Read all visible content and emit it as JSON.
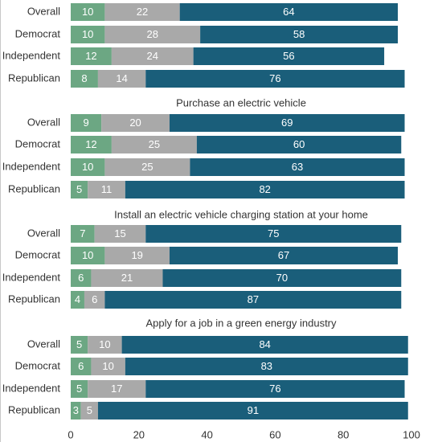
{
  "chart_data": {
    "type": "bar",
    "orientation": "horizontal",
    "stacked": true,
    "xlim": [
      0,
      100
    ],
    "x_ticks": [
      0,
      20,
      40,
      60,
      80,
      100
    ],
    "x_tick_labels": [
      "0",
      "20",
      "40",
      "60",
      "80",
      "100"
    ],
    "grid": false,
    "legend": "none",
    "colors": {
      "segment_1": "#6ca783",
      "segment_2": "#a9a9a9",
      "segment_3": "#1a5e7a",
      "text_dark": "#333333",
      "text_light": "#ffffff"
    },
    "groups": [
      {
        "title": "",
        "rows": [
          {
            "label": "Overall",
            "values": [
              10,
              22,
              64
            ]
          },
          {
            "label": "Democrat",
            "values": [
              10,
              28,
              58
            ]
          },
          {
            "label": "Independent",
            "values": [
              12,
              24,
              56
            ]
          },
          {
            "label": "Republican",
            "values": [
              8,
              14,
              76
            ]
          }
        ]
      },
      {
        "title": "Purchase an electric vehicle",
        "rows": [
          {
            "label": "Overall",
            "values": [
              9,
              20,
              69
            ]
          },
          {
            "label": "Democrat",
            "values": [
              12,
              25,
              60
            ]
          },
          {
            "label": "Independent",
            "values": [
              10,
              25,
              63
            ]
          },
          {
            "label": "Republican",
            "values": [
              5,
              11,
              82
            ]
          }
        ]
      },
      {
        "title": "Install an electric vehicle charging station at your home",
        "rows": [
          {
            "label": "Overall",
            "values": [
              7,
              15,
              75
            ]
          },
          {
            "label": "Democrat",
            "values": [
              10,
              19,
              67
            ]
          },
          {
            "label": "Independent",
            "values": [
              6,
              21,
              70
            ]
          },
          {
            "label": "Republican",
            "values": [
              4,
              6,
              87
            ]
          }
        ]
      },
      {
        "title": "Apply for a job in a green energy industry",
        "rows": [
          {
            "label": "Overall",
            "values": [
              5,
              10,
              84
            ]
          },
          {
            "label": "Democrat",
            "values": [
              6,
              10,
              83
            ]
          },
          {
            "label": "Independent",
            "values": [
              5,
              17,
              76
            ]
          },
          {
            "label": "Republican",
            "values": [
              3,
              5,
              91
            ]
          }
        ]
      }
    ]
  }
}
